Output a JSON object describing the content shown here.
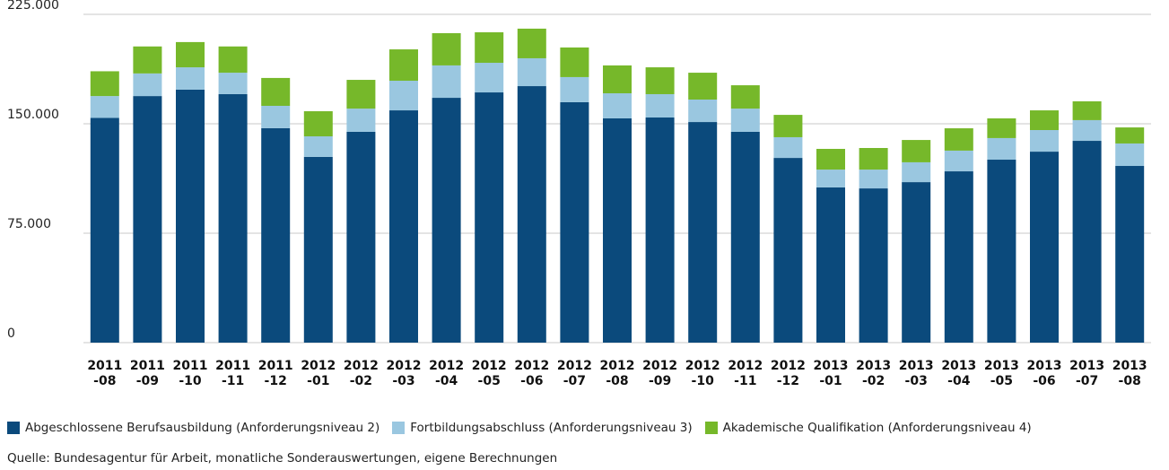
{
  "chart_data": {
    "type": "stacked-bar",
    "categories": [
      "2011\n-08",
      "2011\n-09",
      "2011\n-10",
      "2011\n-11",
      "2011\n-12",
      "2012\n-01",
      "2012\n-02",
      "2012\n-03",
      "2012\n-04",
      "2012\n-05",
      "2012\n-06",
      "2012\n-07",
      "2012\n-08",
      "2012\n-09",
      "2012\n-10",
      "2012\n-11",
      "2012\n-12",
      "2013\n-01",
      "2013\n-02",
      "2013\n-03",
      "2013\n-04",
      "2013\n-05",
      "2013\n-06",
      "2013\n-07",
      "2013\n-08"
    ],
    "series": [
      {
        "name": "Abgeschlossene Berufsausbildung (Anforderungsniveau 2)",
        "color": "#0b4a7c",
        "values": [
          154000,
          169000,
          173400,
          170300,
          147000,
          127300,
          144500,
          159200,
          167800,
          171500,
          175800,
          164800,
          153700,
          154300,
          151200,
          144500,
          126600,
          106400,
          105700,
          110000,
          117400,
          125400,
          130900,
          138300,
          121100
        ]
      },
      {
        "name": "Fortbildungsabschluss (Anforderungsniveau 3)",
        "color": "#9ac7e0",
        "values": [
          15000,
          15500,
          15300,
          14700,
          15300,
          14100,
          15900,
          20300,
          22200,
          20300,
          19100,
          17200,
          17200,
          16000,
          15400,
          15900,
          14200,
          12200,
          12900,
          13600,
          14200,
          14800,
          14800,
          14200,
          15400
        ]
      },
      {
        "name": "Akademische Qualifikation (Anforderungsniveau 4)",
        "color": "#76b82a",
        "values": [
          17000,
          18500,
          17300,
          18000,
          19100,
          17200,
          19700,
          21500,
          22100,
          20900,
          20300,
          20300,
          19100,
          18400,
          18400,
          16000,
          15300,
          14200,
          14800,
          15300,
          15300,
          13500,
          13500,
          12900,
          11000
        ]
      }
    ],
    "ylim": [
      0,
      225000
    ],
    "yticks": [
      0,
      {
        "value": 75000,
        "label": "75.000"
      },
      {
        "value": 150000,
        "label": "150.000"
      },
      {
        "value": 225000,
        "label": "225.000"
      }
    ],
    "grid": true,
    "source": "Quelle: Bundesagentur für Arbeit, monatliche Sonderauswertungen, eigene Berechnungen"
  }
}
